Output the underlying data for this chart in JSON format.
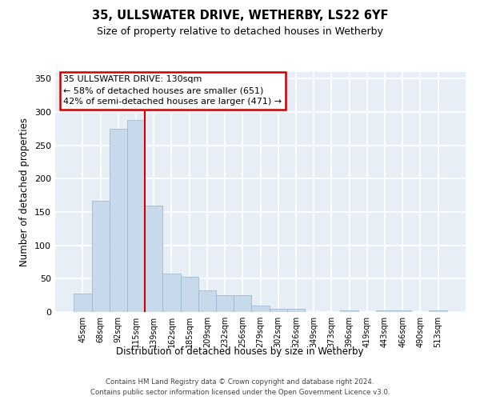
{
  "title1": "35, ULLSWATER DRIVE, WETHERBY, LS22 6YF",
  "title2": "Size of property relative to detached houses in Wetherby",
  "xlabel": "Distribution of detached houses by size in Wetherby",
  "ylabel": "Number of detached properties",
  "bar_color": "#c8d9ec",
  "bar_edge_color": "#a0b8d0",
  "categories": [
    "45sqm",
    "68sqm",
    "92sqm",
    "115sqm",
    "139sqm",
    "162sqm",
    "185sqm",
    "209sqm",
    "232sqm",
    "256sqm",
    "279sqm",
    "302sqm",
    "326sqm",
    "349sqm",
    "373sqm",
    "396sqm",
    "419sqm",
    "443sqm",
    "466sqm",
    "490sqm",
    "513sqm"
  ],
  "values": [
    28,
    167,
    275,
    288,
    160,
    58,
    53,
    33,
    25,
    25,
    10,
    5,
    5,
    0,
    0,
    3,
    0,
    3,
    3,
    0,
    3
  ],
  "ylim": [
    0,
    360
  ],
  "yticks": [
    0,
    50,
    100,
    150,
    200,
    250,
    300,
    350
  ],
  "property_line_color": "#cc0000",
  "property_line_x": 3.5,
  "annotation_line0": "35 ULLSWATER DRIVE: 130sqm",
  "annotation_line1": "← 58% of detached houses are smaller (651)",
  "annotation_line2": "42% of semi-detached houses are larger (471) →",
  "annotation_box_facecolor": "#ffffff",
  "annotation_box_edgecolor": "#cc0000",
  "plot_bg_color": "#e8eef5",
  "footer1": "Contains HM Land Registry data © Crown copyright and database right 2024.",
  "footer2": "Contains public sector information licensed under the Open Government Licence v3.0."
}
